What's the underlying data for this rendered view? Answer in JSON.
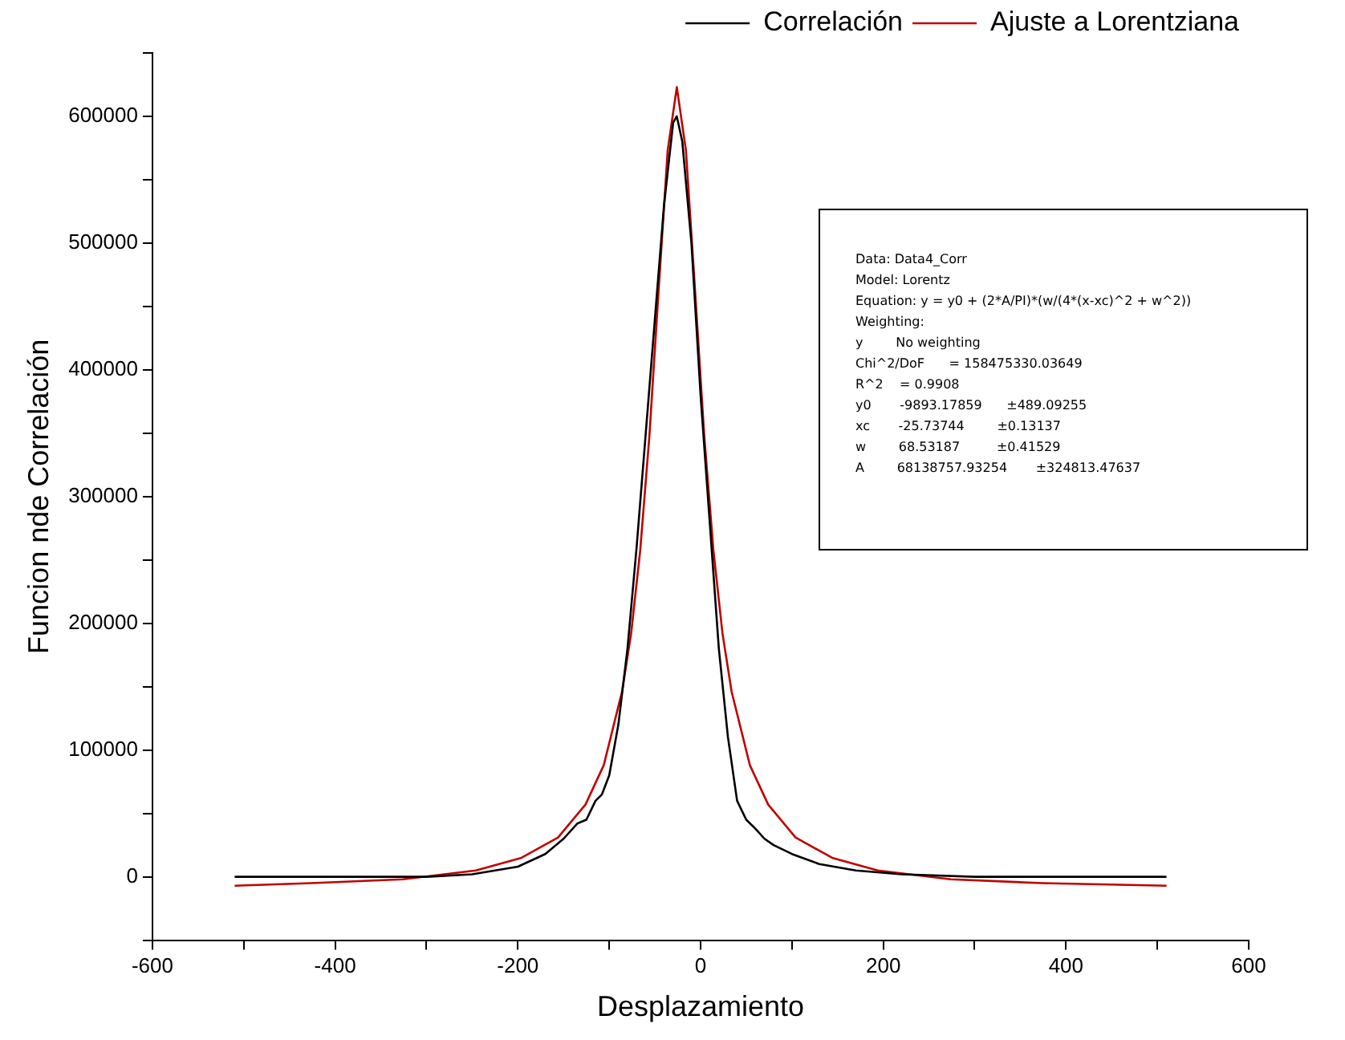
{
  "chart_data": {
    "type": "line",
    "xlabel": "Desplazamiento",
    "ylabel": "Funcion nde Correlación",
    "xlim": [
      -600,
      600
    ],
    "xticks": [
      -600,
      {
        "value": -500,
        "label": null
      },
      -400,
      {
        "value": -300,
        "label": null
      },
      -200,
      {
        "value": -100,
        "label": null
      },
      0,
      {
        "value": 100,
        "label": null
      },
      200,
      {
        "value": 300,
        "label": null
      },
      400,
      {
        "value": 500,
        "label": null
      },
      600
    ],
    "ylim": [
      -50000,
      650000
    ],
    "yticks": [
      {
        "value": -50000,
        "label": null
      },
      0,
      {
        "value": 50000,
        "label": null
      },
      100000,
      {
        "value": 150000,
        "label": null
      },
      200000,
      {
        "value": 250000,
        "label": null
      },
      300000,
      {
        "value": 350000,
        "label": null
      },
      400000,
      {
        "value": 450000,
        "label": null
      },
      500000,
      {
        "value": 550000,
        "label": null
      },
      600000,
      {
        "value": 650000,
        "label": null
      }
    ],
    "grid": false,
    "legend": "top right",
    "marker": "none",
    "line_style": "solid",
    "series": [
      {
        "name": "Correlación",
        "color": "#000000",
        "x": [
          -510,
          -400,
          -300,
          -250,
          -200,
          -170,
          -150,
          -135,
          -125,
          -115,
          -108,
          -100,
          -90,
          -80,
          -70,
          -60,
          -50,
          -40,
          -30,
          -26,
          -20,
          -10,
          0,
          10,
          20,
          30,
          40,
          50,
          60,
          70,
          80,
          100,
          130,
          170,
          220,
          300,
          400,
          510
        ],
        "values": [
          0,
          0,
          0,
          2000,
          8000,
          18000,
          30000,
          42000,
          45000,
          60000,
          65000,
          80000,
          120000,
          180000,
          260000,
          350000,
          440000,
          530000,
          595000,
          600000,
          580000,
          500000,
          380000,
          280000,
          180000,
          110000,
          60000,
          45000,
          38000,
          30000,
          25000,
          18000,
          10000,
          5000,
          2000,
          0,
          0,
          0
        ]
      },
      {
        "name": "Ajuste a Lorentziana",
        "color": "#c00000",
        "x": [
          -510,
          -426,
          -326,
          -246,
          -196,
          -156,
          -126,
          -106,
          -86,
          -76,
          -66,
          -56,
          -46,
          -36,
          -26,
          -16,
          -6,
          4,
          14,
          24,
          34,
          54,
          74,
          104,
          144,
          194,
          274,
          374,
          510
        ],
        "values": [
          -7000,
          -5000,
          -2000,
          5000,
          15000,
          31000,
          57000,
          88000,
          146000,
          192000,
          258000,
          348000,
          462000,
          573000,
          623000,
          573000,
          462000,
          348000,
          258000,
          192000,
          146000,
          88000,
          57000,
          31000,
          15000,
          5000,
          -2000,
          -5000,
          -7000
        ]
      }
    ],
    "annotations": [
      "Data: Data4_Corr",
      "Model: Lorentz",
      "Equation: y = y0 + (2*A/PI)*(w/(4*(x-xc)^2 + w^2))",
      "Weighting:",
      "y        No weighting",
      "Chi^2/DoF      = 158475330.03649",
      "R^2    = 0.9908",
      "y0       -9893.17859      ±489.09255",
      "xc       -25.73744        ±0.13137",
      "w        68.53187         ±0.41529",
      "A        68138757.93254       ±324813.47637"
    ]
  }
}
